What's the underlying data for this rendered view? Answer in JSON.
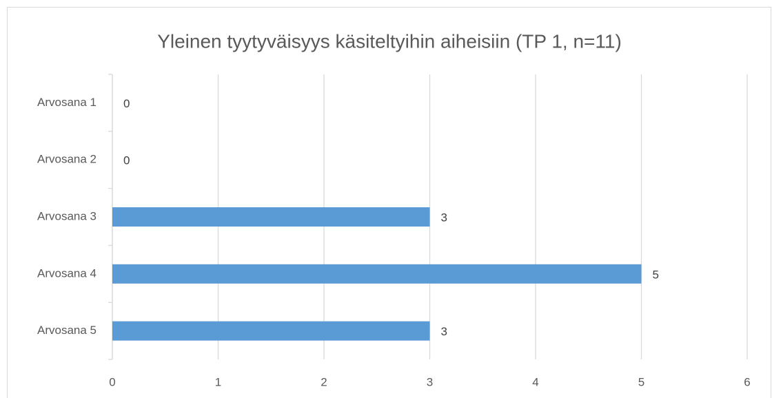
{
  "chart_data": {
    "type": "bar",
    "orientation": "horizontal",
    "title": "Yleinen tyytyväisyys käsiteltyihin aiheisiin (TP 1, n=11)",
    "categories": [
      "Arvosana 1",
      "Arvosana 2",
      "Arvosana 3",
      "Arvosana 4",
      "Arvosana 5"
    ],
    "values": [
      0,
      0,
      3,
      5,
      3
    ],
    "color": "#5b9bd5",
    "xlim": [
      0,
      6
    ],
    "xticks": [
      0,
      1,
      2,
      3,
      4,
      5,
      6
    ],
    "grid": true
  }
}
